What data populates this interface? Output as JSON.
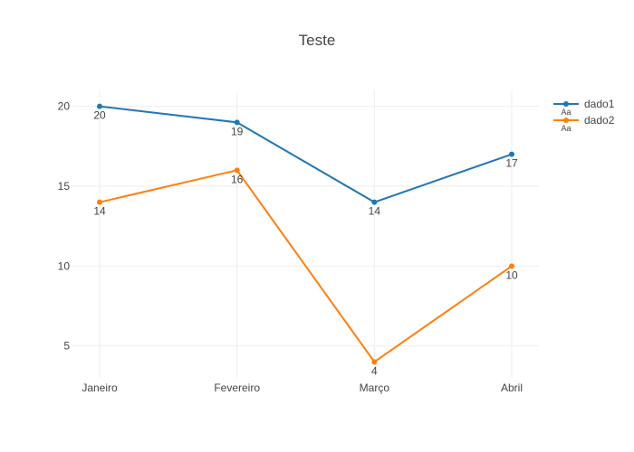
{
  "chart_data": {
    "type": "line",
    "title": "Teste",
    "xlabel": "",
    "ylabel": "",
    "categories": [
      "Janeiro",
      "Fevereiro",
      "Março",
      "Abril"
    ],
    "ylim": [
      3,
      21
    ],
    "yticks": [
      5,
      10,
      15,
      20
    ],
    "grid": true,
    "legend_position": "top-right",
    "series": [
      {
        "name": "dado1",
        "values": [
          20,
          19,
          14,
          17
        ],
        "color": "#1f77b4",
        "labels": [
          "20",
          "19",
          "14",
          "17"
        ]
      },
      {
        "name": "dado2",
        "values": [
          14,
          16,
          4,
          10
        ],
        "color": "#ff7f0e",
        "labels": [
          "14",
          "16",
          "4",
          "10"
        ]
      }
    ],
    "legend_marker_text": "Aa"
  }
}
